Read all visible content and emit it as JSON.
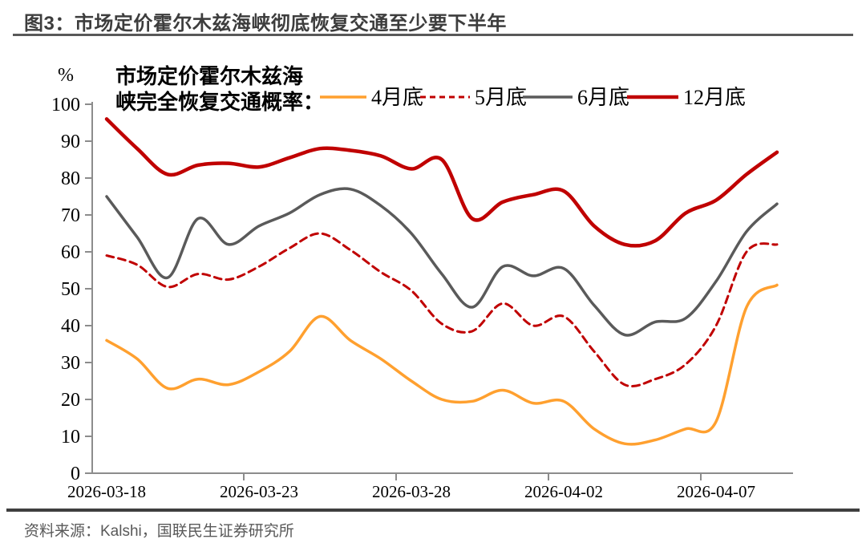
{
  "title": "图3：市场定价霍尔木兹海峡彻底恢复交通至少要下半年",
  "source": "资料来源：Kalshi，国联民生证券研究所",
  "annotation": {
    "line1": "市场定价霍尔木兹海",
    "line2": "峡完全恢复交通概率："
  },
  "y_axis": {
    "unit": "%",
    "ticks": [
      "100",
      "90",
      "80",
      "70",
      "60",
      "50",
      "40",
      "30",
      "20",
      "10",
      "0"
    ]
  },
  "x_axis": {
    "tick_labels": [
      "2026-03-18",
      "2026-03-23",
      "2026-03-28",
      "2026-04-02",
      "2026-04-07"
    ]
  },
  "colors": {
    "accent_red": "#C00000",
    "orange": "#FFA02F",
    "gray": "#5A5A5A",
    "axis": "#8C8C8C",
    "title_text": "#3D3D3D",
    "source_text": "#595959"
  },
  "chart_data": {
    "type": "line",
    "title": "市场定价霍尔木兹海峡完全恢复交通概率",
    "y_unit": "%",
    "ylim": [
      0,
      100
    ],
    "grid": false,
    "legend_position": "top",
    "x": [
      "2026-03-18",
      "2026-03-19",
      "2026-03-20",
      "2026-03-21",
      "2026-03-22",
      "2026-03-23",
      "2026-03-24",
      "2026-03-25",
      "2026-03-26",
      "2026-03-27",
      "2026-03-28",
      "2026-03-29",
      "2026-03-30",
      "2026-03-31",
      "2026-04-01",
      "2026-04-02",
      "2026-04-03",
      "2026-04-04",
      "2026-04-05",
      "2026-04-06",
      "2026-04-07",
      "2026-04-08",
      "2026-04-09"
    ],
    "x_axis_labels_shown": [
      "2026-03-18",
      "2026-03-23",
      "2026-03-28",
      "2026-04-02",
      "2026-04-07"
    ],
    "series": [
      {
        "name": "4月底",
        "color": "#FFA02F",
        "dashed": false,
        "values": [
          36,
          31,
          23,
          25.5,
          24,
          27.5,
          33,
          42.5,
          36,
          31,
          25,
          20,
          19.5,
          22.5,
          19,
          19.5,
          12,
          8,
          9,
          12,
          14,
          45,
          51
        ]
      },
      {
        "name": "5月底",
        "color": "#C00000",
        "dashed": true,
        "values": [
          59,
          56.5,
          50.5,
          54,
          52.5,
          56,
          61,
          65,
          60.5,
          54.5,
          49.5,
          40.5,
          38.5,
          46,
          40,
          42.5,
          33,
          24,
          25.5,
          29.5,
          40,
          60,
          62
        ]
      },
      {
        "name": "6月底",
        "color": "#5A5A5A",
        "dashed": false,
        "values": [
          75,
          64,
          53,
          69,
          62,
          67,
          70.5,
          75.5,
          77,
          72.5,
          65,
          54,
          45,
          56,
          53.5,
          55.5,
          45.5,
          37.5,
          41,
          42,
          52,
          65.5,
          73
        ]
      },
      {
        "name": "12月底",
        "color": "#C00000",
        "dashed": false,
        "values": [
          96,
          88,
          81,
          83.5,
          84,
          83,
          85.5,
          88,
          87.5,
          86,
          82.5,
          85,
          69,
          73.5,
          75.5,
          76.5,
          67,
          62,
          63,
          70.5,
          74,
          81,
          87
        ]
      }
    ]
  }
}
